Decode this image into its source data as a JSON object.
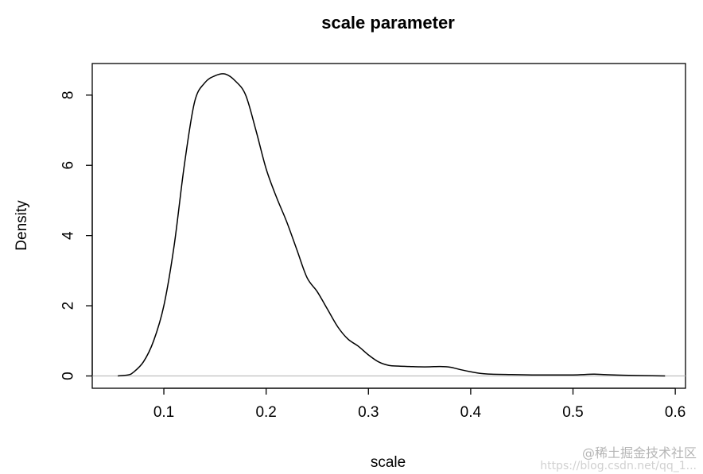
{
  "chart_data": {
    "type": "line",
    "title": "scale parameter",
    "xlabel": "scale",
    "ylabel": "Density",
    "xlim": [
      0.03,
      0.61
    ],
    "ylim": [
      -0.35,
      8.9
    ],
    "x_ticks": [
      0.1,
      0.2,
      0.3,
      0.4,
      0.5,
      0.6
    ],
    "x_tick_labels": [
      "0.1",
      "0.2",
      "0.3",
      "0.4",
      "0.5",
      "0.6"
    ],
    "y_ticks": [
      0,
      2,
      4,
      6,
      8
    ],
    "y_tick_labels": [
      "0",
      "2",
      "4",
      "6",
      "8"
    ],
    "grid": false,
    "baseline": 0,
    "colors": {
      "line": "#000000",
      "baseline": "#bebebe",
      "frame": "#000000"
    },
    "series": [
      {
        "x": [
          0.055,
          0.065,
          0.07,
          0.08,
          0.09,
          0.1,
          0.11,
          0.12,
          0.13,
          0.14,
          0.15,
          0.16,
          0.17,
          0.18,
          0.19,
          0.2,
          0.21,
          0.22,
          0.23,
          0.24,
          0.25,
          0.26,
          0.27,
          0.28,
          0.29,
          0.3,
          0.31,
          0.32,
          0.33,
          0.34,
          0.35,
          0.36,
          0.37,
          0.38,
          0.39,
          0.4,
          0.41,
          0.42,
          0.44,
          0.46,
          0.48,
          0.5,
          0.52,
          0.53,
          0.55,
          0.57,
          0.59
        ],
        "y": [
          0.0,
          0.03,
          0.1,
          0.4,
          1.0,
          2.0,
          3.7,
          6.0,
          7.8,
          8.35,
          8.55,
          8.6,
          8.4,
          8.0,
          7.0,
          5.9,
          5.1,
          4.4,
          3.6,
          2.8,
          2.4,
          1.9,
          1.4,
          1.05,
          0.85,
          0.6,
          0.4,
          0.3,
          0.28,
          0.27,
          0.26,
          0.26,
          0.27,
          0.25,
          0.18,
          0.12,
          0.07,
          0.05,
          0.04,
          0.03,
          0.03,
          0.03,
          0.05,
          0.04,
          0.02,
          0.01,
          0.0
        ]
      }
    ]
  },
  "watermark": {
    "line1": "@稀土掘金技术社区",
    "line2": "https://blog.csdn.net/qq_1..."
  }
}
